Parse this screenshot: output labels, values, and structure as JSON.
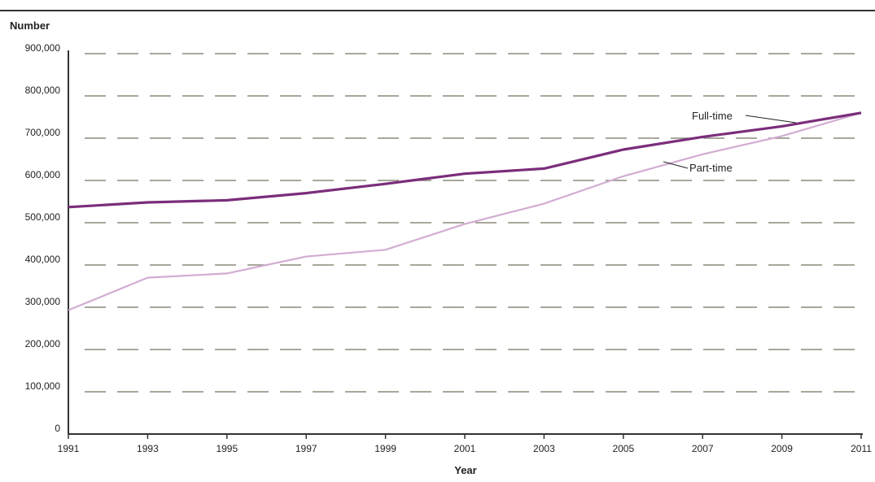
{
  "chart_data": {
    "type": "line",
    "title": "",
    "ylabel": "Number",
    "xlabel": "Year",
    "x_ticks": [
      "1991",
      "1993",
      "1995",
      "1997",
      "1999",
      "2001",
      "2003",
      "2005",
      "2007",
      "2009",
      "2011"
    ],
    "y_ticks": [
      "0",
      "100,000",
      "200,000",
      "300,000",
      "400,000",
      "500,000",
      "600,000",
      "700,000",
      "800,000",
      "900,000"
    ],
    "ylim": [
      0,
      900000
    ],
    "xlim": [
      1991,
      2011
    ],
    "grid": "horizontal dashed",
    "series": [
      {
        "name": "Full-time",
        "color": "#7b2d7b",
        "x": [
          1991,
          1993,
          1995,
          1997,
          1999,
          2001,
          2003,
          2005,
          2007,
          2009,
          2011
        ],
        "values": [
          537000,
          548000,
          553000,
          570000,
          592000,
          616000,
          628000,
          673000,
          703000,
          728000,
          760000
        ]
      },
      {
        "name": "Part-time",
        "color": "#d2acd2",
        "x": [
          1991,
          1993,
          1995,
          1997,
          1999,
          2001,
          2003,
          2005,
          2007,
          2009,
          2011
        ],
        "values": [
          293000,
          370000,
          380000,
          420000,
          436000,
          497000,
          545000,
          610000,
          662000,
          705000,
          760000
        ]
      }
    ]
  }
}
